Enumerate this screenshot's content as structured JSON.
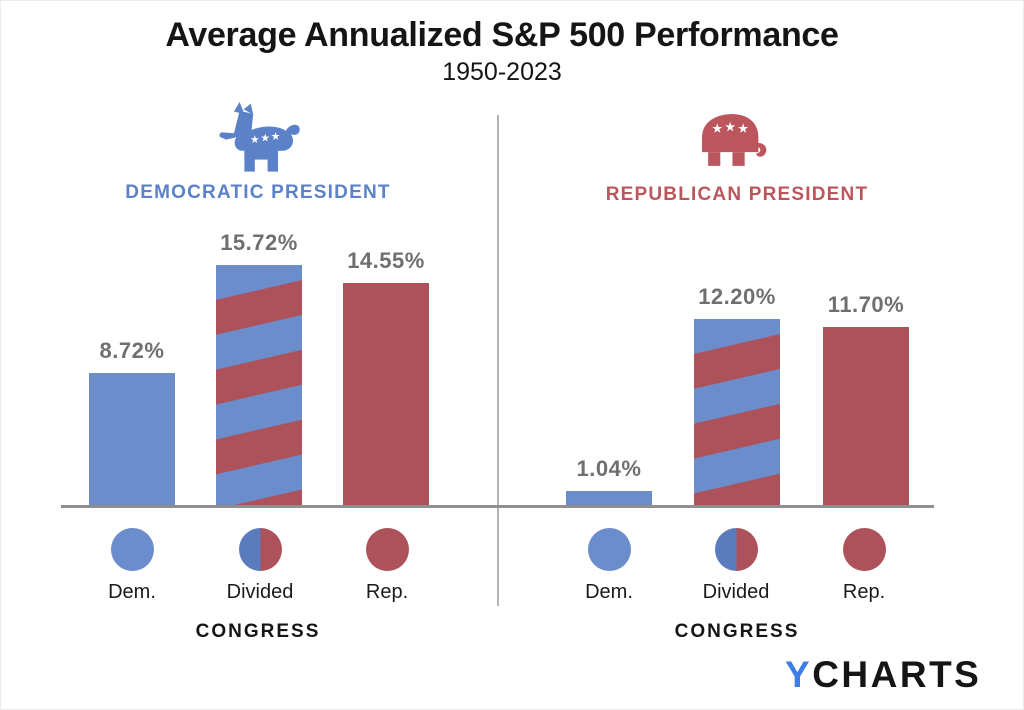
{
  "chart_data": {
    "type": "bar",
    "title": "Average Annualized S&P 500 Performance",
    "subtitle": "1950-2023",
    "value_unit": "percent annualized return",
    "ylim": [
      0,
      16.5
    ],
    "grid": false,
    "panels": [
      {
        "id": "democratic-president",
        "header": "DEMOCRATIC PRESIDENT",
        "icon": "democrat-donkey-icon",
        "xlabel": "CONGRESS",
        "categories": [
          "Dem.",
          "Divided",
          "Rep."
        ],
        "values": [
          8.72,
          15.72,
          14.55
        ],
        "value_labels": [
          "8.72%",
          "15.72%",
          "14.55%"
        ],
        "bar_styles": [
          "solid-democrat",
          "striped-divided",
          "solid-republican"
        ]
      },
      {
        "id": "republican-president",
        "header": "REPUBLICAN PRESIDENT",
        "icon": "republican-elephant-icon",
        "xlabel": "CONGRESS",
        "categories": [
          "Dem.",
          "Divided",
          "Rep."
        ],
        "values": [
          1.04,
          12.2,
          11.7
        ],
        "value_labels": [
          "1.04%",
          "12.20%",
          "11.70%"
        ],
        "bar_styles": [
          "solid-democrat",
          "striped-divided",
          "solid-republican"
        ]
      }
    ]
  },
  "branding": {
    "logo_prefix": "Y",
    "logo_suffix": "CHARTS"
  },
  "colors": {
    "dem_blue": "#6B8DCB",
    "rep_red": "#AD525A",
    "divided_blue": "#5B7CBC",
    "democrat_accent": "#5B82C8",
    "republican_accent": "#BB565D",
    "value_label_gray": "#6F6F6F",
    "axis_gray": "#8F8F8F",
    "divider_gray": "#B3B3B3",
    "logo_blue": "#3E7CE8",
    "text_black": "#151515"
  }
}
